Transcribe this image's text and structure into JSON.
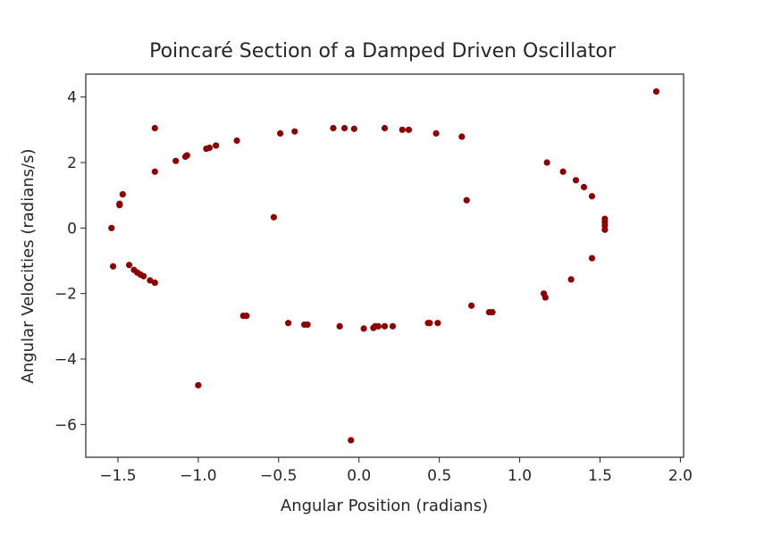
{
  "chart_data": {
    "type": "scatter",
    "title": "Poincaré Section of a Damped Driven Oscillator",
    "xlabel": "Angular Position (radians)",
    "ylabel": "Angular Velocities (radians/s)",
    "xlim": [
      -1.7,
      2.02
    ],
    "ylim": [
      -7.0,
      4.7
    ],
    "xticks": [
      -1.5,
      -1.0,
      -0.5,
      0.0,
      0.5,
      1.0,
      1.5,
      2.0
    ],
    "xtick_labels": [
      "−1.5",
      "−1.0",
      "−0.5",
      "0.0",
      "0.5",
      "1.0",
      "1.5",
      "2.0"
    ],
    "yticks": [
      4,
      2,
      0,
      -2,
      -4,
      -6
    ],
    "ytick_labels": [
      "4",
      "2",
      "0",
      "−2",
      "−4",
      "−6"
    ],
    "grid": false,
    "marker_color": "#8b0000",
    "points": [
      {
        "x": -1.27,
        "y": 3.05
      },
      {
        "x": -0.16,
        "y": 3.05
      },
      {
        "x": -0.09,
        "y": 3.05
      },
      {
        "x": -0.03,
        "y": 3.03
      },
      {
        "x": 0.16,
        "y": 3.05
      },
      {
        "x": 0.27,
        "y": 3.0
      },
      {
        "x": 0.31,
        "y": 3.0
      },
      {
        "x": -0.4,
        "y": 2.95
      },
      {
        "x": -0.49,
        "y": 2.89
      },
      {
        "x": 0.48,
        "y": 2.89
      },
      {
        "x": 0.64,
        "y": 2.79
      },
      {
        "x": -0.76,
        "y": 2.67
      },
      {
        "x": -0.89,
        "y": 2.52
      },
      {
        "x": -0.93,
        "y": 2.45
      },
      {
        "x": -0.95,
        "y": 2.42
      },
      {
        "x": -1.07,
        "y": 2.22
      },
      {
        "x": -1.08,
        "y": 2.18
      },
      {
        "x": -1.14,
        "y": 2.05
      },
      {
        "x": -1.27,
        "y": 1.72
      },
      {
        "x": 1.17,
        "y": 2.0
      },
      {
        "x": 1.27,
        "y": 1.72
      },
      {
        "x": 1.35,
        "y": 1.46
      },
      {
        "x": 1.4,
        "y": 1.25
      },
      {
        "x": 1.45,
        "y": 0.97
      },
      {
        "x": -1.47,
        "y": 1.03
      },
      {
        "x": -1.49,
        "y": 0.74
      },
      {
        "x": -1.49,
        "y": 0.7
      },
      {
        "x": 0.67,
        "y": 0.85
      },
      {
        "x": -0.53,
        "y": 0.33
      },
      {
        "x": 1.53,
        "y": 0.28
      },
      {
        "x": 1.53,
        "y": 0.18
      },
      {
        "x": 1.53,
        "y": 0.08
      },
      {
        "x": 1.53,
        "y": -0.05
      },
      {
        "x": -1.54,
        "y": 0.0
      },
      {
        "x": 1.45,
        "y": -0.92
      },
      {
        "x": -1.53,
        "y": -1.17
      },
      {
        "x": -1.43,
        "y": -1.13
      },
      {
        "x": -1.4,
        "y": -1.28
      },
      {
        "x": -1.38,
        "y": -1.36
      },
      {
        "x": -1.36,
        "y": -1.42
      },
      {
        "x": -1.34,
        "y": -1.47
      },
      {
        "x": -1.3,
        "y": -1.6
      },
      {
        "x": -1.27,
        "y": -1.67
      },
      {
        "x": 1.32,
        "y": -1.57
      },
      {
        "x": 1.15,
        "y": -2.0
      },
      {
        "x": 1.16,
        "y": -2.12
      },
      {
        "x": 0.7,
        "y": -2.37
      },
      {
        "x": 0.81,
        "y": -2.57
      },
      {
        "x": 0.83,
        "y": -2.57
      },
      {
        "x": -0.72,
        "y": -2.68
      },
      {
        "x": -0.7,
        "y": -2.68
      },
      {
        "x": -0.44,
        "y": -2.9
      },
      {
        "x": 0.43,
        "y": -2.9
      },
      {
        "x": 0.44,
        "y": -2.9
      },
      {
        "x": 0.49,
        "y": -2.9
      },
      {
        "x": -0.34,
        "y": -2.95
      },
      {
        "x": -0.32,
        "y": -2.95
      },
      {
        "x": -0.12,
        "y": -3.0
      },
      {
        "x": 0.1,
        "y": -3.0
      },
      {
        "x": 0.12,
        "y": -3.0
      },
      {
        "x": 0.16,
        "y": -3.0
      },
      {
        "x": 0.21,
        "y": -3.0
      },
      {
        "x": 0.03,
        "y": -3.07
      },
      {
        "x": 0.09,
        "y": -3.05
      },
      {
        "x": -1.0,
        "y": -4.8
      },
      {
        "x": -0.05,
        "y": -6.48
      },
      {
        "x": 1.85,
        "y": 4.17
      }
    ]
  }
}
